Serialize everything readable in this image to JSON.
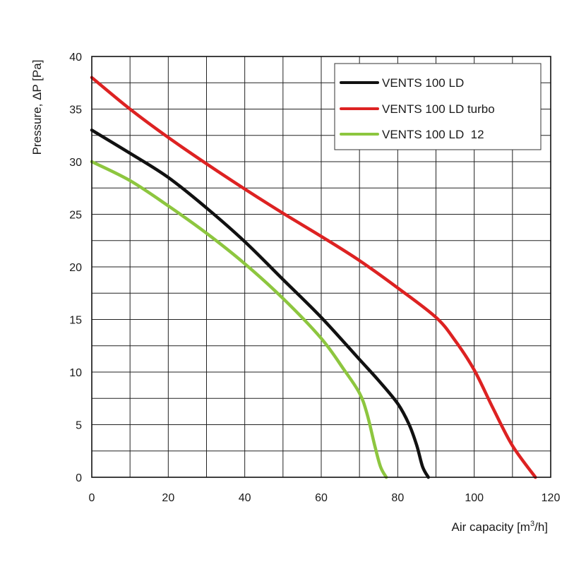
{
  "chart_data": {
    "type": "line",
    "title": "",
    "xlabel_prefix": "Air capacity [m",
    "xlabel_sup": "3",
    "xlabel_suffix": "/h]",
    "ylabel": "Pressure, ΔP [Pa]",
    "xlim": [
      0,
      120
    ],
    "ylim": [
      0,
      40
    ],
    "x_major_ticks": [
      0,
      20,
      40,
      60,
      80,
      100,
      120
    ],
    "y_major_ticks": [
      0,
      5,
      10,
      15,
      20,
      25,
      30,
      35,
      40
    ],
    "x_minor_step": 10,
    "y_minor_step": 2.5,
    "grid": true,
    "legend_position": "top-right",
    "series": [
      {
        "name": "VENTS 100 LD",
        "color": "#111111",
        "points": [
          [
            0,
            33
          ],
          [
            10,
            30.8
          ],
          [
            20,
            28.5
          ],
          [
            30,
            25.6
          ],
          [
            40,
            22.4
          ],
          [
            50,
            18.8
          ],
          [
            60,
            15.2
          ],
          [
            70,
            11.2
          ],
          [
            75,
            9.2
          ],
          [
            80,
            7
          ],
          [
            83,
            5
          ],
          [
            85,
            3
          ],
          [
            86.5,
            1
          ],
          [
            88,
            0
          ]
        ]
      },
      {
        "name": "VENTS 100 LD turbo",
        "color": "#dd2222",
        "points": [
          [
            0,
            38
          ],
          [
            10,
            35
          ],
          [
            20,
            32.3
          ],
          [
            30,
            29.8
          ],
          [
            40,
            27.4
          ],
          [
            50,
            25.1
          ],
          [
            60,
            22.9
          ],
          [
            70,
            20.6
          ],
          [
            80,
            18
          ],
          [
            90,
            15.2
          ],
          [
            95,
            13
          ],
          [
            100,
            10.2
          ],
          [
            105,
            6.5
          ],
          [
            110,
            3
          ],
          [
            116,
            0
          ]
        ]
      },
      {
        "name": "VENTS 100 LD  12",
        "color": "#8dc63f",
        "points": [
          [
            0,
            30
          ],
          [
            10,
            28.2
          ],
          [
            20,
            25.8
          ],
          [
            30,
            23.2
          ],
          [
            40,
            20.3
          ],
          [
            50,
            17
          ],
          [
            60,
            13.2
          ],
          [
            66,
            10.2
          ],
          [
            70,
            8
          ],
          [
            72,
            6
          ],
          [
            74,
            3
          ],
          [
            75.5,
            1
          ],
          [
            77,
            0
          ]
        ]
      }
    ]
  }
}
